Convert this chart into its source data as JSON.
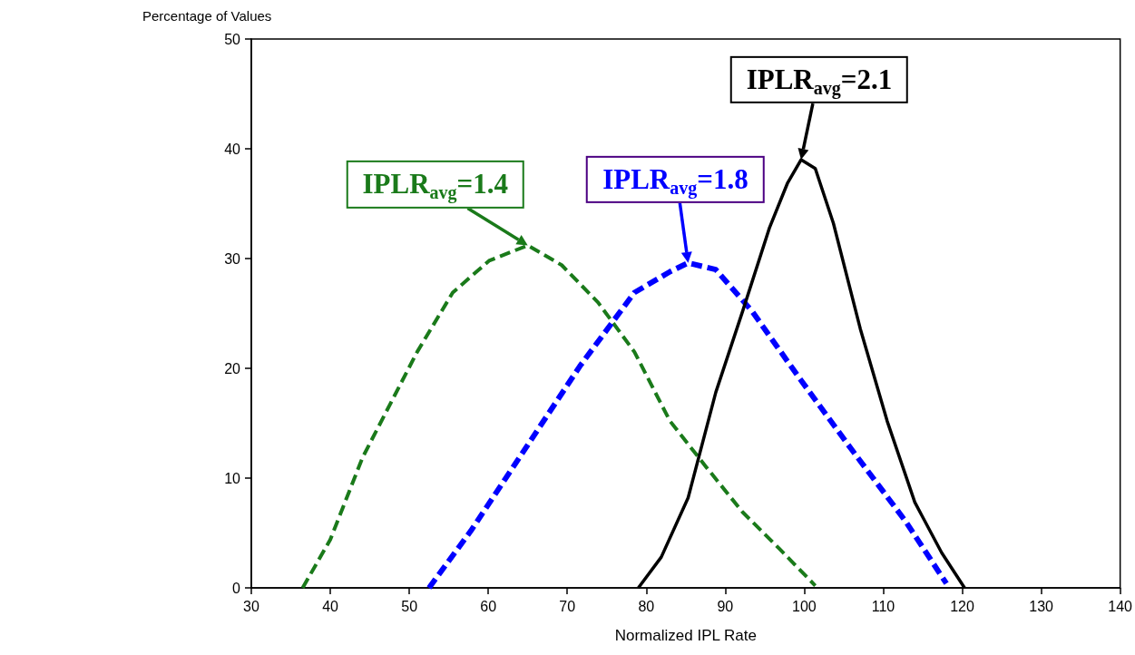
{
  "chart_data": {
    "type": "line",
    "xlabel": "Normalized IPL Rate",
    "ylabel": "Percentage of Values",
    "xlim": [
      30,
      140
    ],
    "xticks": [
      30,
      40,
      50,
      60,
      70,
      80,
      90,
      100,
      110,
      120,
      130,
      140
    ],
    "ylim": [
      0,
      50
    ],
    "yticks": [
      0,
      10,
      20,
      30,
      40,
      50
    ],
    "grid": false,
    "marker": "none",
    "series": [
      {
        "color": "#1a7a1a",
        "line_style": "dashed",
        "x": [
          36.5,
          40,
          44.1,
          51,
          55.5,
          60.1,
          65,
          69.3,
          73.9,
          78.5,
          83,
          87.6,
          92.2,
          96.8,
          101.4
        ],
        "values": [
          0,
          4.4,
          11.9,
          21.5,
          26.9,
          29.8,
          31.2,
          29.4,
          26,
          21.5,
          15.2,
          11,
          6.9,
          3.6,
          0.2
        ]
      },
      {
        "color": "#0000ff",
        "line_style": "dashed",
        "x": [
          52.5,
          57.8,
          64.7,
          71.6,
          78.5,
          83,
          85.3,
          88.8,
          93.4,
          99.1,
          105.9,
          112.8,
          118
        ],
        "values": [
          0,
          5.2,
          12.7,
          20.2,
          26.9,
          28.8,
          29.6,
          29,
          25.2,
          19.4,
          12.7,
          6.1,
          0.4
        ]
      },
      {
        "color": "#000000",
        "line_style": "solid",
        "x": [
          79,
          81.9,
          85.3,
          88.8,
          92.2,
          95.6,
          97.9,
          99.6,
          101.4,
          103.7,
          107.1,
          110.5,
          114,
          117.4,
          120.3
        ],
        "values": [
          0,
          2.8,
          8.2,
          17.8,
          25.2,
          32.8,
          36.9,
          39,
          38.2,
          33.2,
          23.6,
          15.2,
          7.8,
          3.2,
          0
        ]
      }
    ],
    "annotations": [
      {
        "text": "IPLR$_{avg}$=1.4",
        "x": 65,
        "y": 31.2
      },
      {
        "text": "IPLR$_{avg}$=1.8",
        "x": 85.3,
        "y": 29.6
      },
      {
        "text": "IPLR$_{avg}$=2.1",
        "x": 99.6,
        "y": 39
      }
    ]
  }
}
